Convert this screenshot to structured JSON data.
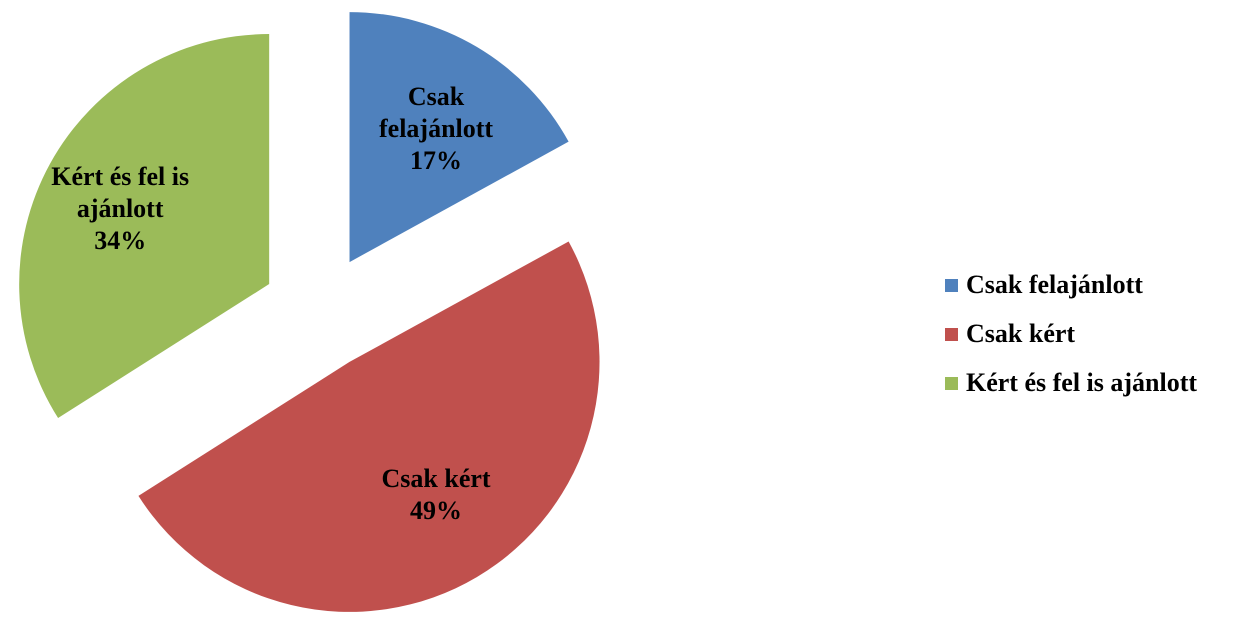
{
  "chart_data": {
    "type": "pie",
    "categories": [
      "Csak felajánlott",
      "Csak kért",
      "Kért és fel is ajánlott"
    ],
    "values": [
      17,
      49,
      34
    ],
    "value_labels": [
      "17%",
      "49%",
      "34%"
    ],
    "colors": [
      "#4f81bd",
      "#c0504d",
      "#9bbb59"
    ],
    "exploded": true,
    "legend": "right"
  }
}
